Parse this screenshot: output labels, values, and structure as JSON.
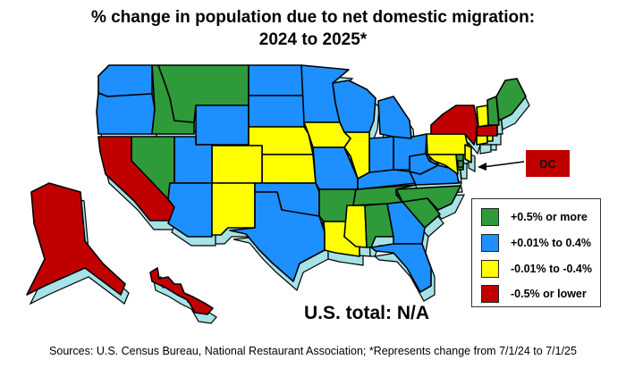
{
  "title": {
    "line1": "% change in population due to net domestic migration:",
    "line2": "2024 to 2025*"
  },
  "total": "U.S. total: N/A",
  "footer": "Sources: U.S. Census Bureau, National Restaurant Association; *Represents change from 7/1/24 to 7/1/25",
  "dc_label": "DC",
  "colors": {
    "green": "#2f9a3a",
    "blue": "#1e8fff",
    "yellow": "#ffff00",
    "red": "#c00000",
    "shadow": "#a6e2e6"
  },
  "legend": [
    {
      "label": "+0.5% or more",
      "category": "green"
    },
    {
      "label": "+0.01% to 0.4%",
      "category": "blue"
    },
    {
      "label": "-0.01% to -0.4%",
      "category": "yellow"
    },
    {
      "label": "-0.5% or lower",
      "category": "red"
    }
  ],
  "states": {
    "WA": "blue",
    "OR": "blue",
    "ID": "green",
    "MT": "green",
    "WY": "blue",
    "ND": "blue",
    "SD": "blue",
    "NE": "yellow",
    "KS": "yellow",
    "CO": "yellow",
    "UT": "blue",
    "NV": "green",
    "CA": "red",
    "AZ": "blue",
    "NM": "yellow",
    "OK": "blue",
    "TX": "blue",
    "MN": "blue",
    "IA": "yellow",
    "MO": "blue",
    "AR": "green",
    "LA": "yellow",
    "MS": "yellow",
    "AL": "green",
    "GA": "blue",
    "FL": "blue",
    "SC": "green",
    "NC": "green",
    "TN": "green",
    "KY": "blue",
    "VA": "blue",
    "WV": "blue",
    "OH": "blue",
    "IN": "blue",
    "IL": "yellow",
    "WI": "blue",
    "MI": "blue",
    "PA": "yellow",
    "NY": "red",
    "MD": "yellow",
    "DE": "green",
    "NJ": "yellow",
    "VT": "yellow",
    "NH": "green",
    "ME": "green",
    "MA": "red",
    "CT": "yellow",
    "RI": "yellow",
    "AK": "red",
    "HI": "red",
    "DC": "green"
  }
}
